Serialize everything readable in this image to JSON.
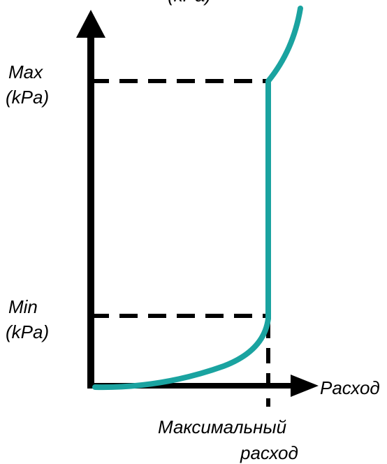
{
  "y_axis": {
    "label_clipped": "(kPa)",
    "max_label_line1": "Max",
    "max_label_line2": "(kPa)",
    "min_label_line1": "Min",
    "min_label_line2": "(kPa)"
  },
  "x_axis": {
    "label": "Расход",
    "max_flow_label_line1": "Максимальный",
    "max_flow_label_line2": "расход"
  },
  "colors": {
    "axis": "#000000",
    "curve": "#1aa3a0",
    "dashed_guides": "#000000"
  }
}
